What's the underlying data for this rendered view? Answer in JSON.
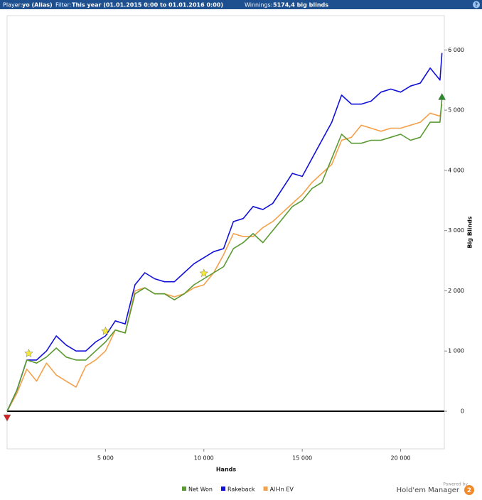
{
  "header": {
    "player_label": "Player:",
    "player": "yo (Alias)",
    "filter_label": "Filter:",
    "filter": "This year (01.01.2015 0:00 to 01.01.2016 0:00)",
    "winnings_label": "Winnings:",
    "winnings": "5174,4 big blinds",
    "help": "?"
  },
  "chart_data": {
    "type": "line",
    "xlabel": "Hands",
    "ylabel": "Big Blinds",
    "x": [
      0,
      500,
      1000,
      1500,
      2000,
      2500,
      3000,
      3500,
      4000,
      4500,
      5000,
      5500,
      6000,
      6500,
      7000,
      7500,
      8000,
      8500,
      9000,
      9500,
      10000,
      10500,
      11000,
      11500,
      12000,
      12500,
      13000,
      13500,
      14000,
      14500,
      15000,
      15500,
      16000,
      16500,
      17000,
      17500,
      18000,
      18500,
      19000,
      19500,
      20000,
      20500,
      21000,
      21500,
      22000,
      22100
    ],
    "series": [
      {
        "name": "Net Won",
        "color": "#5a9a32",
        "values": [
          0,
          350,
          850,
          800,
          900,
          1050,
          900,
          850,
          850,
          1000,
          1150,
          1350,
          1300,
          1950,
          2050,
          1950,
          1950,
          1850,
          1950,
          2100,
          2200,
          2300,
          2400,
          2700,
          2800,
          2950,
          2800,
          3000,
          3200,
          3400,
          3500,
          3700,
          3800,
          4200,
          4600,
          4450,
          4450,
          4500,
          4500,
          4550,
          4600,
          4500,
          4550,
          4800,
          4800,
          5200
        ]
      },
      {
        "name": "Rakeback",
        "color": "#1010d8",
        "values": [
          0,
          350,
          850,
          850,
          1000,
          1250,
          1100,
          1000,
          1000,
          1150,
          1250,
          1500,
          1450,
          2100,
          2300,
          2200,
          2150,
          2150,
          2300,
          2450,
          2550,
          2650,
          2700,
          3150,
          3200,
          3400,
          3350,
          3450,
          3700,
          3950,
          3900,
          4200,
          4500,
          4800,
          5250,
          5100,
          5100,
          5150,
          5300,
          5350,
          5300,
          5400,
          5450,
          5700,
          5500,
          5950
        ]
      },
      {
        "name": "All-In EV",
        "color": "#f5a04a",
        "values": [
          0,
          300,
          700,
          500,
          800,
          600,
          500,
          400,
          750,
          850,
          1000,
          1350,
          1300,
          2000,
          2050,
          1950,
          1950,
          1900,
          1950,
          2050,
          2100,
          2300,
          2600,
          2950,
          2900,
          2900,
          3050,
          3150,
          3300,
          3450,
          3600,
          3800,
          3950,
          4100,
          4500,
          4550,
          4750,
          4700,
          4650,
          4700,
          4700,
          4750,
          4800,
          4950,
          4900,
          5100
        ]
      }
    ],
    "markers": [
      {
        "shape": "star",
        "color": "#f5e83a",
        "x": 1100,
        "y": 960
      },
      {
        "shape": "star",
        "color": "#f5e83a",
        "x": 5000,
        "y": 1330
      },
      {
        "shape": "star",
        "color": "#f5e83a",
        "x": 10000,
        "y": 2290
      },
      {
        "shape": "triangle-down",
        "color": "#d82020",
        "x": 0,
        "y": -106
      },
      {
        "shape": "triangle-up",
        "color": "#2a8a2a",
        "x": 22100,
        "y": 5220
      }
    ],
    "xlim": [
      0,
      22220
    ],
    "ylim": [
      -625,
      6570
    ],
    "xticks": [
      {
        "value": 5000,
        "label": "5 000"
      },
      {
        "value": 10000,
        "label": "10 000"
      },
      {
        "value": 15000,
        "label": "15 000"
      },
      {
        "value": 20000,
        "label": "20 000"
      }
    ],
    "yticks": [
      0,
      {
        "value": 1000,
        "label": "1 000"
      },
      {
        "value": 2000,
        "label": "2 000"
      },
      {
        "value": 3000,
        "label": "3 000"
      },
      {
        "value": 4000,
        "label": "4 000"
      },
      {
        "value": 5000,
        "label": "5 000"
      },
      {
        "value": 6000,
        "label": "6 000"
      }
    ],
    "grid": false,
    "legend": "bottom"
  },
  "footer": {
    "powered": "Powered by",
    "brand": "Hold'em Manager",
    "version": "2"
  }
}
